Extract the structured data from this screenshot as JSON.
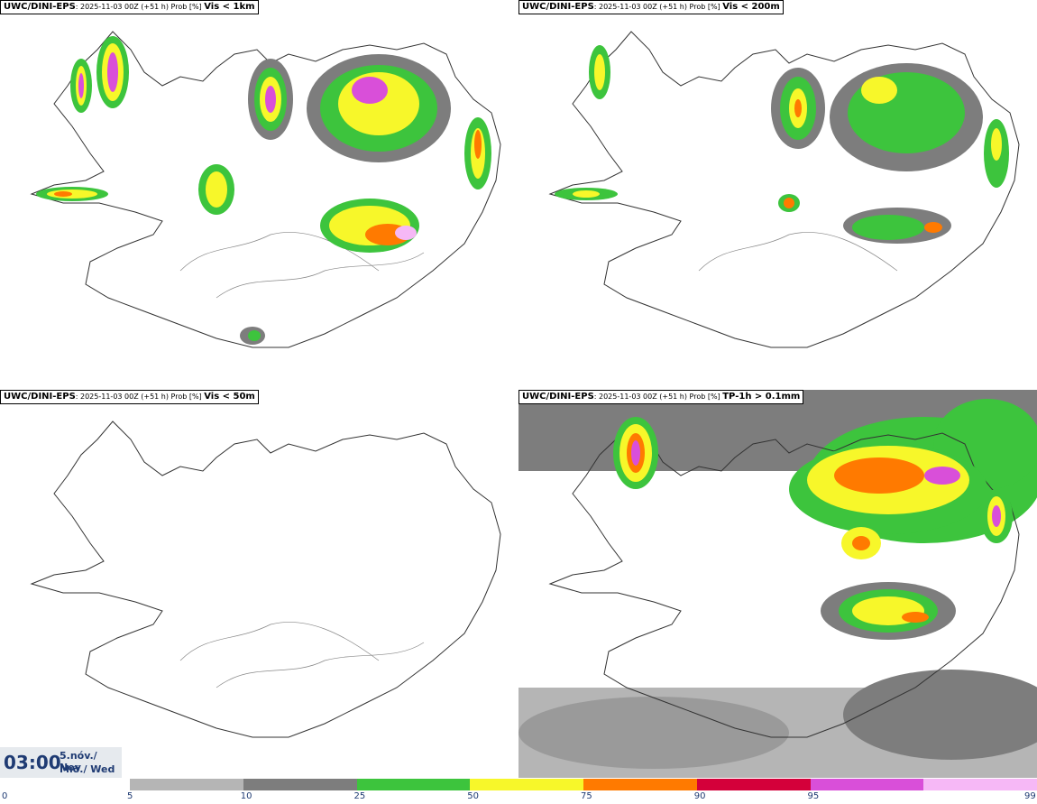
{
  "panels": [
    {
      "source": "UWC/DINI-EPS",
      "meta": ": 2025-11-03 00Z (+51 h) Prob [%]",
      "variable": "Vis < 1km"
    },
    {
      "source": "UWC/DINI-EPS",
      "meta": ": 2025-11-03 00Z (+51 h) Prob [%]",
      "variable": "Vis < 200m"
    },
    {
      "source": "UWC/DINI-EPS",
      "meta": ": 2025-11-03 00Z (+51 h) Prob [%]",
      "variable": "Vis < 50m"
    },
    {
      "source": "UWC/DINI-EPS",
      "meta": ": 2025-11-03 00Z (+51 h) Prob [%]",
      "variable": "TP-1h > 0.1mm"
    }
  ],
  "time": {
    "clock": "03:00",
    "date_line1": "5.nóv./ Nov",
    "date_line2": "Mið./ Wed"
  },
  "legend": {
    "ticks": [
      "0",
      "5",
      "10",
      "25",
      "50",
      "75",
      "90",
      "95",
      "99"
    ],
    "colors": [
      "#b5b5b5",
      "#7d7d7d",
      "#3dc43d",
      "#f7f72a",
      "#ff7a00",
      "#d4003a",
      "#d94fd9",
      "#f6b8f6"
    ]
  }
}
